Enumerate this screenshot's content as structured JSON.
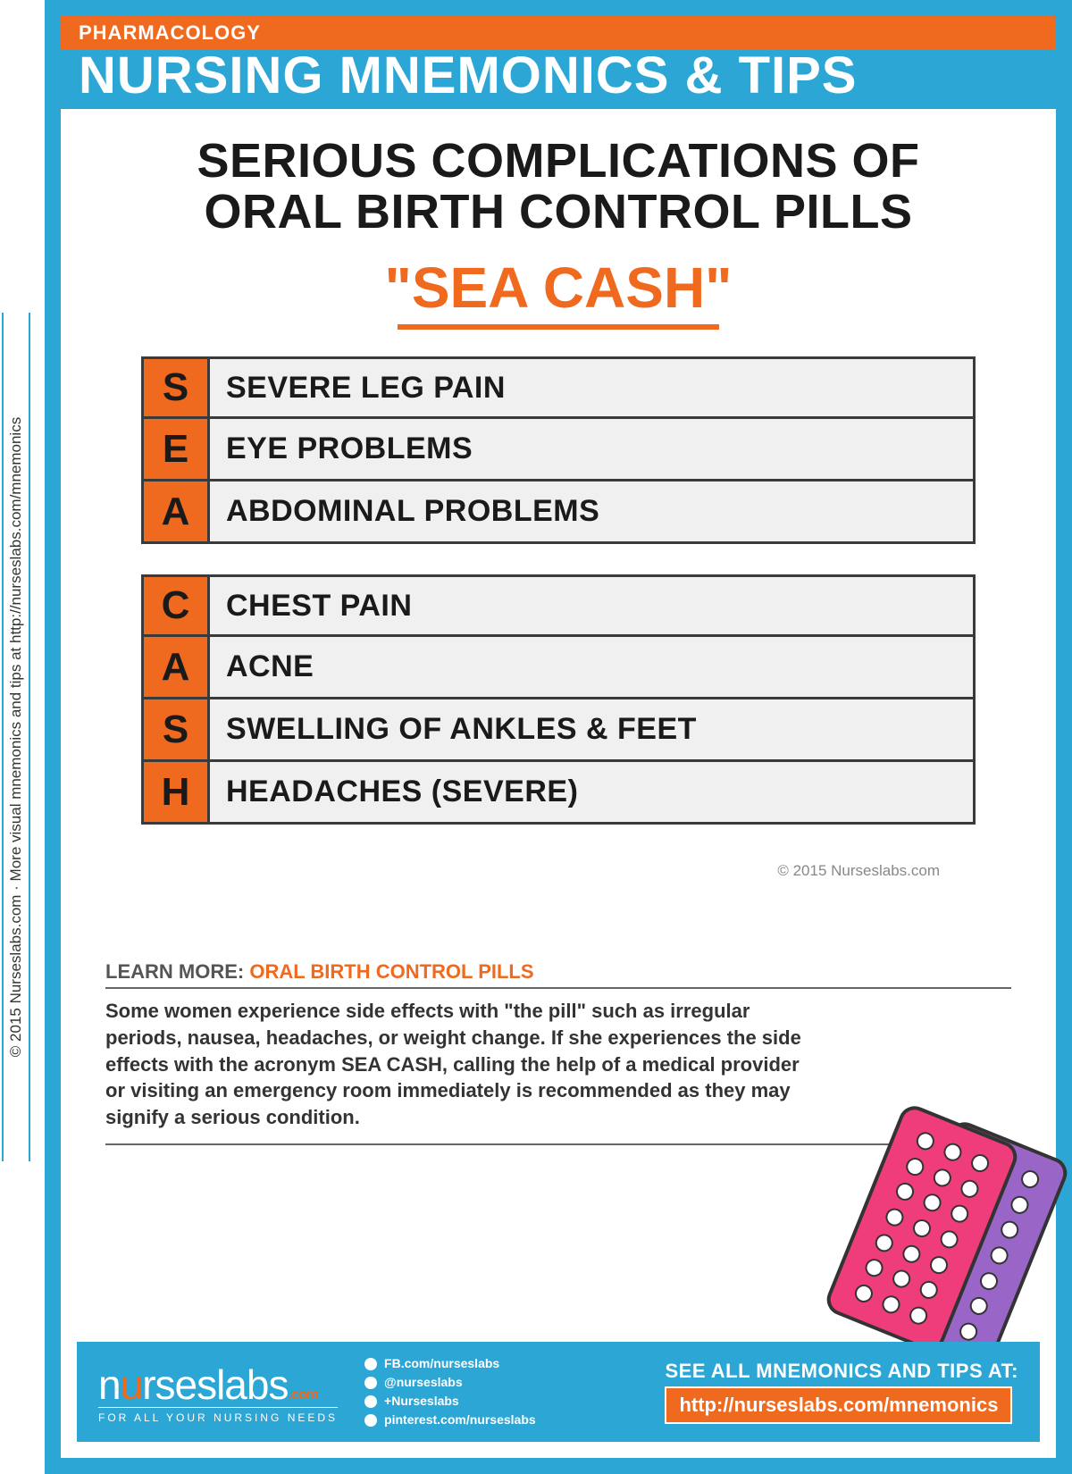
{
  "sidebar_text": "© 2015 Nurseslabs.com · More visual mnemonics and tips at http://nurseslabs.com/mnemonics",
  "category": "PHARMACOLOGY",
  "header": "NURSING MNEMONICS & TIPS",
  "title_line1": "SERIOUS COMPLICATIONS OF",
  "title_line2": "ORAL BIRTH CONTROL PILLS",
  "mnemonic": "\"SEA CASH\"",
  "group1": [
    {
      "letter": "S",
      "desc": "SEVERE LEG PAIN"
    },
    {
      "letter": "E",
      "desc": "EYE PROBLEMS"
    },
    {
      "letter": "A",
      "desc": "ABDOMINAL PROBLEMS"
    }
  ],
  "group2": [
    {
      "letter": "C",
      "desc": "CHEST PAIN"
    },
    {
      "letter": "A",
      "desc": "ACNE"
    },
    {
      "letter": "S",
      "desc": "SWELLING OF ANKLES & FEET"
    },
    {
      "letter": "H",
      "desc": "HEADACHES (SEVERE)"
    }
  ],
  "copyright": "© 2015 Nurseslabs.com",
  "learn_more_label": "LEARN MORE:",
  "learn_more_topic": "ORAL BIRTH CONTROL PILLS",
  "learn_more_body": "Some women experience side effects with \"the pill\" such as irregular periods, nausea, headaches, or weight change. If she experiences the side effects with the acronym SEA CASH, calling the help of a medical provider or visiting an emergency room immediately is recommended as they may signify a serious condition.",
  "logo_text": "nurseslabs",
  "logo_com": ".com",
  "logo_tagline": "FOR ALL YOUR NURSING NEEDS",
  "socials": {
    "fb": "FB.com/nurseslabs",
    "tw": "@nurseslabs",
    "gp": "+Nurseslabs",
    "pin": "pinterest.com/nurseslabs"
  },
  "footer_label": "SEE ALL MNEMONICS AND TIPS AT:",
  "footer_link": "http://nurseslabs.com/mnemonics",
  "colors": {
    "blue": "#2ba6d5",
    "orange": "#ef6a1f",
    "dark": "#1a1a1a",
    "row_bg": "#f0f0f0"
  }
}
